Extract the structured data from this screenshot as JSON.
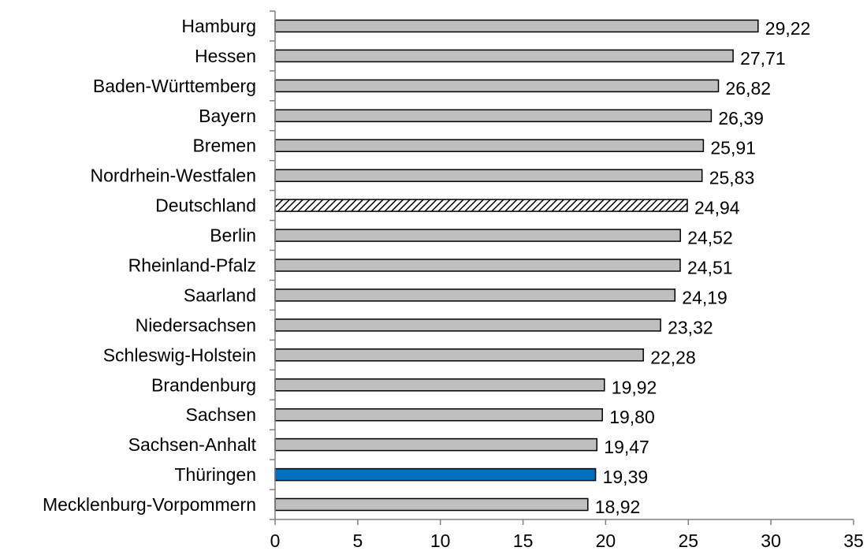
{
  "chart_data": {
    "type": "bar",
    "orientation": "horizontal",
    "title": "",
    "xlabel": "",
    "ylabel": "",
    "categories": [
      "Hamburg",
      "Hessen",
      "Baden-Württemberg",
      "Bayern",
      "Bremen",
      "Nordrhein-Westfalen",
      "Deutschland",
      "Berlin",
      "Rheinland-Pfalz",
      "Saarland",
      "Niedersachsen",
      "Schleswig-Holstein",
      "Brandenburg",
      "Sachsen",
      "Sachsen-Anhalt",
      "Thüringen",
      "Mecklenburg-Vorpommern"
    ],
    "values": [
      29.22,
      27.71,
      26.82,
      26.39,
      25.91,
      25.83,
      24.94,
      24.52,
      24.51,
      24.19,
      23.32,
      22.28,
      19.92,
      19.8,
      19.47,
      19.39,
      18.92
    ],
    "value_labels": [
      "29,22",
      "27,71",
      "26,82",
      "26,39",
      "25,91",
      "25,83",
      "24,94",
      "24,52",
      "24,51",
      "24,19",
      "23,32",
      "22,28",
      "19,92",
      "19,80",
      "19,47",
      "19,39",
      "18,92"
    ],
    "bar_styles": [
      "default",
      "default",
      "default",
      "default",
      "default",
      "default",
      "hatched",
      "default",
      "default",
      "default",
      "default",
      "default",
      "default",
      "default",
      "default",
      "highlight",
      "default"
    ],
    "xlim": [
      0,
      35
    ],
    "xticks": [
      0,
      5,
      10,
      15,
      20,
      25,
      30,
      35
    ],
    "grid": false,
    "legend": "none",
    "colors": {
      "default_fill": "#bfbfbf",
      "highlight_fill": "#0070c0",
      "hatch_stroke": "#000000",
      "bar_outline": "#000000",
      "axis": "#808080",
      "text": "#000000"
    }
  }
}
